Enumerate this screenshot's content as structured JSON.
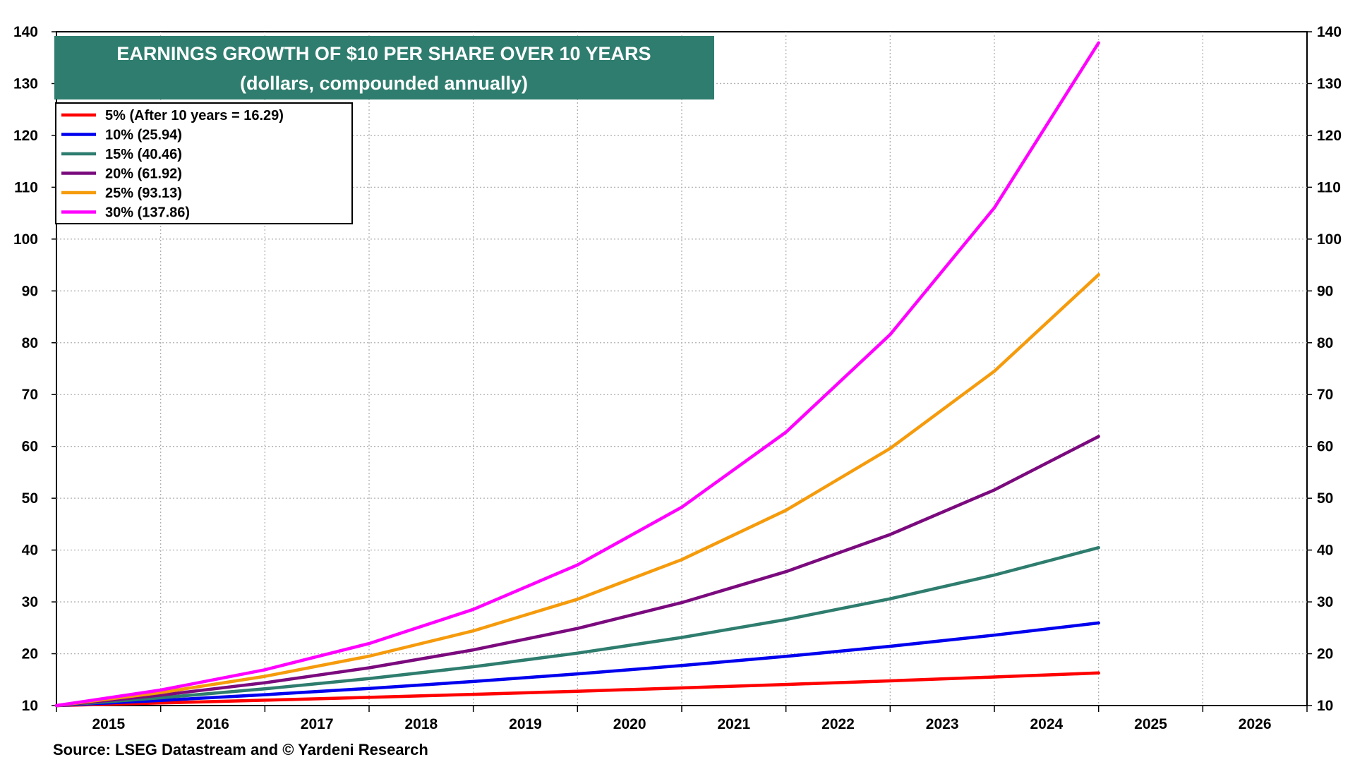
{
  "chart_data": {
    "type": "line",
    "title": "EARNINGS GROWTH OF $10 PER SHARE OVER 10 YEARS",
    "subtitle": "(dollars, compounded annually)",
    "source": "Source: LSEG Datastream and © Yardeni Research",
    "x": [
      2014.5,
      2015.5,
      2016.5,
      2017.5,
      2018.5,
      2019.5,
      2020.5,
      2021.5,
      2022.5,
      2023.5,
      2024.5
    ],
    "xlim": [
      2014.5,
      2026.5
    ],
    "x_tick_labels": [
      "2015",
      "2016",
      "2017",
      "2018",
      "2019",
      "2020",
      "2021",
      "2022",
      "2023",
      "2024",
      "2025",
      "2026"
    ],
    "ylim": [
      10,
      140
    ],
    "y_ticks": [
      10,
      20,
      30,
      40,
      50,
      60,
      70,
      80,
      90,
      100,
      110,
      120,
      130,
      140
    ],
    "y_tick_labels": [
      "10",
      "20",
      "30",
      "40",
      "50",
      "60",
      "70",
      "80",
      "90",
      "100",
      "110",
      "120",
      "130",
      "140"
    ],
    "grid": true,
    "legend_position": "top-left",
    "series": [
      {
        "name": "5% (After 10 years = 16.29)",
        "color": "#ff0000",
        "values": [
          10.0,
          10.5,
          11.03,
          11.58,
          12.16,
          12.76,
          13.4,
          14.07,
          14.77,
          15.51,
          16.29
        ]
      },
      {
        "name": "10% (25.94)",
        "color": "#0000ee",
        "values": [
          10.0,
          11.0,
          12.1,
          13.31,
          14.64,
          16.11,
          17.72,
          19.49,
          21.44,
          23.58,
          25.94
        ]
      },
      {
        "name": "15% (40.46)",
        "color": "#2e7d6e",
        "values": [
          10.0,
          11.5,
          13.23,
          15.21,
          17.49,
          20.11,
          23.13,
          26.6,
          30.59,
          35.18,
          40.46
        ]
      },
      {
        "name": "20% (61.92)",
        "color": "#7b0a7e",
        "values": [
          10.0,
          12.0,
          14.4,
          17.28,
          20.74,
          24.88,
          29.86,
          35.83,
          43.0,
          51.6,
          61.92
        ]
      },
      {
        "name": "25% (93.13)",
        "color": "#f59b0c",
        "values": [
          10.0,
          12.5,
          15.63,
          19.53,
          24.41,
          30.52,
          38.15,
          47.68,
          59.6,
          74.51,
          93.13
        ]
      },
      {
        "name": "30% (137.86)",
        "color": "#ff00ff",
        "values": [
          10.0,
          13.0,
          16.9,
          21.97,
          28.56,
          37.13,
          48.27,
          62.75,
          81.57,
          106.04,
          137.86
        ]
      }
    ],
    "colors": {
      "title_background": "#2e7d6e",
      "title_text": "#ffffff",
      "grid": "#b0b0b0"
    }
  }
}
